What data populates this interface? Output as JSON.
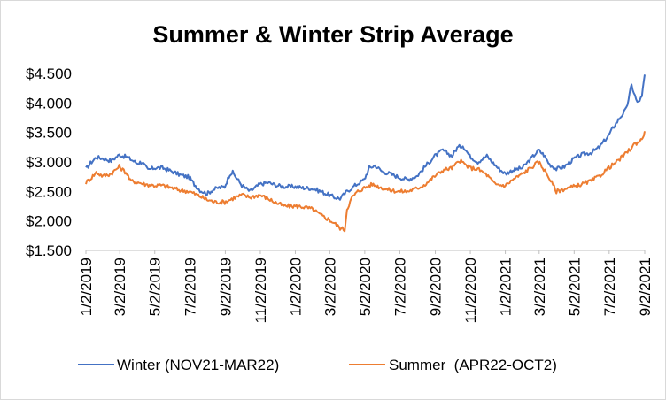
{
  "chart_data": {
    "type": "line",
    "title": "Summer & Winter Strip Average",
    "xlabel": "",
    "ylabel": "",
    "x_axis_type": "date",
    "x_range": [
      "2019-01-02",
      "2021-09-02"
    ],
    "x_tick_labels": [
      "1/2/2019",
      "3/2/2019",
      "5/2/2019",
      "7/2/2019",
      "9/2/2019",
      "11/2/2019",
      "1/2/2020",
      "3/2/2020",
      "5/2/2020",
      "7/2/2020",
      "9/2/2020",
      "11/2/2020",
      "1/2/2021",
      "3/2/2021",
      "5/2/2021",
      "7/2/2021",
      "9/2/2021"
    ],
    "y_tick_labels": [
      "$1.500",
      "$2.000",
      "$2.500",
      "$3.000",
      "$3.500",
      "$4.000",
      "$4.500"
    ],
    "ylim": [
      1.5,
      4.5
    ],
    "grid": false,
    "legend_position": "bottom",
    "series": [
      {
        "name": "Winter (NOV21-MAR22)",
        "color": "#4472c4",
        "points": [
          [
            "2019-01-02",
            2.88
          ],
          [
            "2019-01-10",
            2.98
          ],
          [
            "2019-01-20",
            3.08
          ],
          [
            "2019-02-01",
            3.06
          ],
          [
            "2019-02-15",
            3.02
          ],
          [
            "2019-03-01",
            3.12
          ],
          [
            "2019-03-15",
            3.08
          ],
          [
            "2019-04-01",
            2.98
          ],
          [
            "2019-04-10",
            3.0
          ],
          [
            "2019-04-20",
            2.86
          ],
          [
            "2019-05-01",
            2.9
          ],
          [
            "2019-05-15",
            2.9
          ],
          [
            "2019-06-01",
            2.84
          ],
          [
            "2019-06-15",
            2.78
          ],
          [
            "2019-07-01",
            2.74
          ],
          [
            "2019-07-10",
            2.62
          ],
          [
            "2019-07-20",
            2.52
          ],
          [
            "2019-08-01",
            2.46
          ],
          [
            "2019-08-10",
            2.52
          ],
          [
            "2019-08-20",
            2.56
          ],
          [
            "2019-09-01",
            2.58
          ],
          [
            "2019-09-10",
            2.8
          ],
          [
            "2019-09-15",
            2.82
          ],
          [
            "2019-10-01",
            2.6
          ],
          [
            "2019-10-15",
            2.5
          ],
          [
            "2019-11-01",
            2.62
          ],
          [
            "2019-11-15",
            2.65
          ],
          [
            "2019-12-01",
            2.6
          ],
          [
            "2019-12-15",
            2.58
          ],
          [
            "2020-01-02",
            2.58
          ],
          [
            "2020-01-15",
            2.56
          ],
          [
            "2020-02-01",
            2.55
          ],
          [
            "2020-02-15",
            2.5
          ],
          [
            "2020-03-01",
            2.44
          ],
          [
            "2020-03-10",
            2.4
          ],
          [
            "2020-03-20",
            2.38
          ],
          [
            "2020-04-01",
            2.5
          ],
          [
            "2020-04-15",
            2.6
          ],
          [
            "2020-05-01",
            2.7
          ],
          [
            "2020-05-10",
            2.9
          ],
          [
            "2020-05-20",
            2.94
          ],
          [
            "2020-06-01",
            2.84
          ],
          [
            "2020-06-15",
            2.8
          ],
          [
            "2020-07-01",
            2.74
          ],
          [
            "2020-07-15",
            2.7
          ],
          [
            "2020-08-01",
            2.76
          ],
          [
            "2020-08-15",
            2.92
          ],
          [
            "2020-09-01",
            3.1
          ],
          [
            "2020-09-15",
            3.2
          ],
          [
            "2020-10-01",
            3.1
          ],
          [
            "2020-10-10",
            3.24
          ],
          [
            "2020-10-20",
            3.28
          ],
          [
            "2020-11-01",
            3.1
          ],
          [
            "2020-11-15",
            3.0
          ],
          [
            "2020-12-01",
            3.1
          ],
          [
            "2020-12-10",
            3.0
          ],
          [
            "2020-12-20",
            2.9
          ],
          [
            "2021-01-02",
            2.8
          ],
          [
            "2021-01-15",
            2.86
          ],
          [
            "2021-02-01",
            2.9
          ],
          [
            "2021-02-15",
            3.05
          ],
          [
            "2021-03-01",
            3.2
          ],
          [
            "2021-03-10",
            3.12
          ],
          [
            "2021-03-20",
            2.96
          ],
          [
            "2021-04-01",
            2.88
          ],
          [
            "2021-04-15",
            2.92
          ],
          [
            "2021-05-01",
            3.05
          ],
          [
            "2021-05-15",
            3.12
          ],
          [
            "2021-06-01",
            3.16
          ],
          [
            "2021-06-15",
            3.25
          ],
          [
            "2021-07-01",
            3.45
          ],
          [
            "2021-07-10",
            3.6
          ],
          [
            "2021-07-20",
            3.74
          ],
          [
            "2021-08-01",
            3.9
          ],
          [
            "2021-08-10",
            4.3
          ],
          [
            "2021-08-20",
            4.0
          ],
          [
            "2021-08-28",
            4.1
          ],
          [
            "2021-09-02",
            4.48
          ]
        ]
      },
      {
        "name": "Summer  (APR22-OCT2)",
        "color": "#ed7d31",
        "points": [
          [
            "2019-01-02",
            2.65
          ],
          [
            "2019-01-10",
            2.72
          ],
          [
            "2019-01-20",
            2.82
          ],
          [
            "2019-02-01",
            2.76
          ],
          [
            "2019-02-15",
            2.8
          ],
          [
            "2019-03-01",
            2.92
          ],
          [
            "2019-03-15",
            2.8
          ],
          [
            "2019-03-20",
            2.68
          ],
          [
            "2019-04-01",
            2.66
          ],
          [
            "2019-04-15",
            2.62
          ],
          [
            "2019-05-01",
            2.6
          ],
          [
            "2019-05-15",
            2.6
          ],
          [
            "2019-06-01",
            2.56
          ],
          [
            "2019-06-15",
            2.52
          ],
          [
            "2019-07-01",
            2.5
          ],
          [
            "2019-07-15",
            2.44
          ],
          [
            "2019-08-01",
            2.36
          ],
          [
            "2019-08-15",
            2.32
          ],
          [
            "2019-09-01",
            2.32
          ],
          [
            "2019-09-15",
            2.38
          ],
          [
            "2019-10-01",
            2.44
          ],
          [
            "2019-10-15",
            2.4
          ],
          [
            "2019-11-01",
            2.44
          ],
          [
            "2019-11-15",
            2.38
          ],
          [
            "2019-12-01",
            2.3
          ],
          [
            "2019-12-15",
            2.25
          ],
          [
            "2020-01-02",
            2.25
          ],
          [
            "2020-01-15",
            2.24
          ],
          [
            "2020-02-01",
            2.2
          ],
          [
            "2020-02-15",
            2.1
          ],
          [
            "2020-03-01",
            2.02
          ],
          [
            "2020-03-10",
            1.96
          ],
          [
            "2020-03-20",
            1.88
          ],
          [
            "2020-03-28",
            1.85
          ],
          [
            "2020-04-01",
            2.2
          ],
          [
            "2020-04-10",
            2.4
          ],
          [
            "2020-04-20",
            2.5
          ],
          [
            "2020-05-01",
            2.56
          ],
          [
            "2020-05-15",
            2.62
          ],
          [
            "2020-06-01",
            2.56
          ],
          [
            "2020-06-15",
            2.52
          ],
          [
            "2020-07-01",
            2.5
          ],
          [
            "2020-07-15",
            2.5
          ],
          [
            "2020-08-01",
            2.55
          ],
          [
            "2020-08-15",
            2.62
          ],
          [
            "2020-09-01",
            2.76
          ],
          [
            "2020-09-15",
            2.86
          ],
          [
            "2020-10-01",
            2.9
          ],
          [
            "2020-10-15",
            3.02
          ],
          [
            "2020-11-01",
            2.9
          ],
          [
            "2020-11-15",
            2.88
          ],
          [
            "2020-12-01",
            2.78
          ],
          [
            "2020-12-15",
            2.62
          ],
          [
            "2021-01-02",
            2.6
          ],
          [
            "2021-01-15",
            2.7
          ],
          [
            "2021-02-01",
            2.8
          ],
          [
            "2021-02-15",
            2.9
          ],
          [
            "2021-03-01",
            3.0
          ],
          [
            "2021-03-10",
            2.88
          ],
          [
            "2021-03-20",
            2.72
          ],
          [
            "2021-04-01",
            2.5
          ],
          [
            "2021-04-15",
            2.54
          ],
          [
            "2021-05-01",
            2.58
          ],
          [
            "2021-05-15",
            2.62
          ],
          [
            "2021-06-01",
            2.68
          ],
          [
            "2021-06-15",
            2.76
          ],
          [
            "2021-07-01",
            2.9
          ],
          [
            "2021-07-15",
            3.0
          ],
          [
            "2021-08-01",
            3.15
          ],
          [
            "2021-08-15",
            3.3
          ],
          [
            "2021-08-28",
            3.38
          ],
          [
            "2021-09-02",
            3.52
          ]
        ]
      }
    ]
  }
}
